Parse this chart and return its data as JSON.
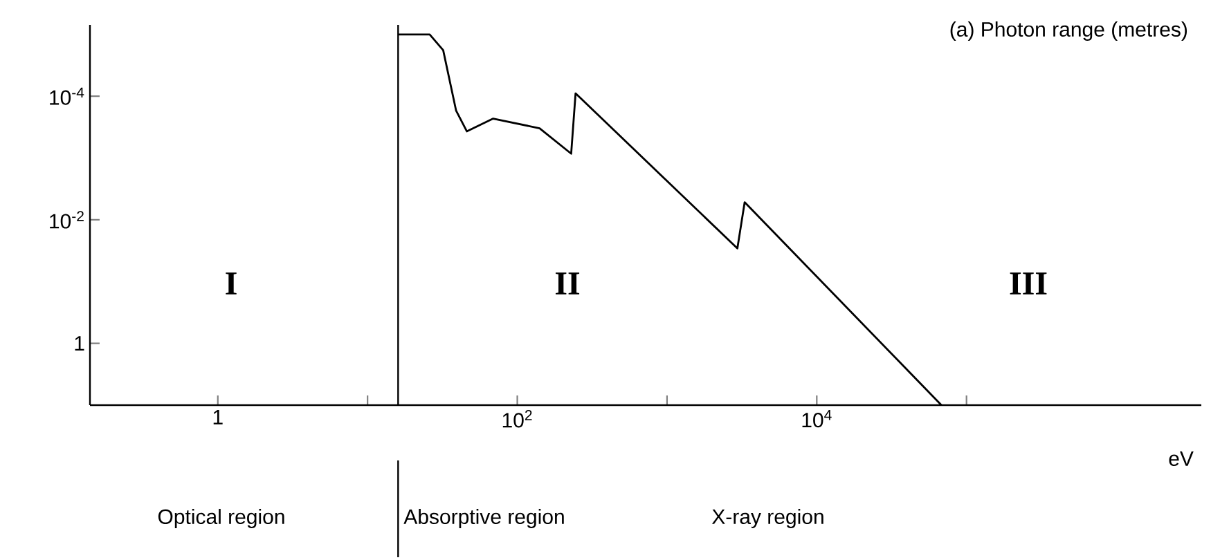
{
  "chart_data": {
    "type": "line",
    "title": "(a) Photon range (metres)",
    "xlabel": "eV",
    "log": "xy",
    "grid": false,
    "legend": false,
    "marker": "none",
    "line_style": "solid",
    "xlim": [
      0.14,
      3700000
    ],
    "ylim": [
      10,
      7e-06
    ],
    "xticks": [
      {
        "value": 1,
        "label": "1"
      },
      {
        "value": 10,
        "label": null
      },
      {
        "value": 100,
        "label": "10$^{2}$"
      },
      {
        "value": 1000,
        "label": null
      },
      {
        "value": 10000,
        "label": "10$^{4}$"
      },
      {
        "value": 100000,
        "label": null
      }
    ],
    "yticks": [
      {
        "value": 0.0001,
        "label": "10$^{-4}$"
      },
      {
        "value": 0.01,
        "label": "10$^{-2}$"
      },
      1
    ],
    "x": [
      16,
      26,
      32,
      39,
      46,
      69,
      141,
      229,
      245,
      2950,
      3300,
      68000
    ],
    "series": [
      {
        "color": "#000000",
        "values": [
          1e-05,
          1e-05,
          1.8e-05,
          0.00017,
          0.00037,
          0.00023,
          0.00033,
          0.00085,
          9e-05,
          0.029,
          0.0052,
          10
        ]
      }
    ],
    "ref_lines": [
      {
        "axis": "x",
        "value": 16,
        "color": "#000000"
      }
    ],
    "annotations": [
      "I",
      "II",
      "III",
      "Optical region",
      "Absorptive region",
      "X-ray region"
    ]
  }
}
